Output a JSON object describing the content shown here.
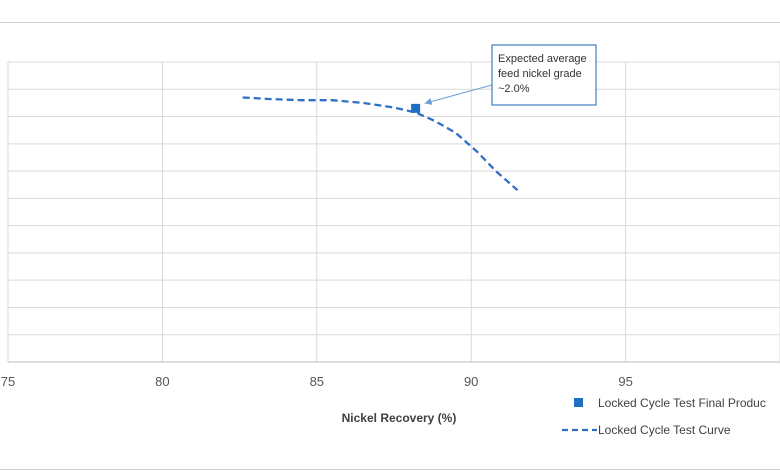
{
  "chart_data": {
    "type": "line",
    "title": "",
    "xlabel": "Nickel Recovery (%)",
    "ylabel": "",
    "xlim": [
      75,
      100
    ],
    "ylim": [
      0,
      11
    ],
    "x_ticks": [
      "75",
      "80",
      "85",
      "90",
      "95"
    ],
    "grid": true,
    "legend_position": "bottom-right",
    "series": [
      {
        "name": "Locked Cycle Test Final Produc",
        "kind": "scatter",
        "marker": "square",
        "color": "#1f6fc5",
        "points": [
          {
            "x": 88.2,
            "y": 9.3
          }
        ]
      },
      {
        "name": "Locked Cycle Test Curve",
        "kind": "line",
        "style": "dashed",
        "color": "#2f6fc6",
        "points": [
          {
            "x": 82.6,
            "y": 9.7
          },
          {
            "x": 83.5,
            "y": 9.64
          },
          {
            "x": 84.5,
            "y": 9.6
          },
          {
            "x": 85.5,
            "y": 9.6
          },
          {
            "x": 86.5,
            "y": 9.5
          },
          {
            "x": 87.5,
            "y": 9.33
          },
          {
            "x": 88.2,
            "y": 9.15
          },
          {
            "x": 88.8,
            "y": 8.85
          },
          {
            "x": 89.5,
            "y": 8.4
          },
          {
            "x": 90.2,
            "y": 7.7
          },
          {
            "x": 90.8,
            "y": 7.0
          },
          {
            "x": 91.5,
            "y": 6.3
          }
        ]
      }
    ],
    "annotations": [
      {
        "text_lines": [
          "Expected average",
          "feed nickel grade",
          "~2.0%"
        ],
        "target": {
          "x": 88.2,
          "y": 9.3
        }
      }
    ]
  }
}
